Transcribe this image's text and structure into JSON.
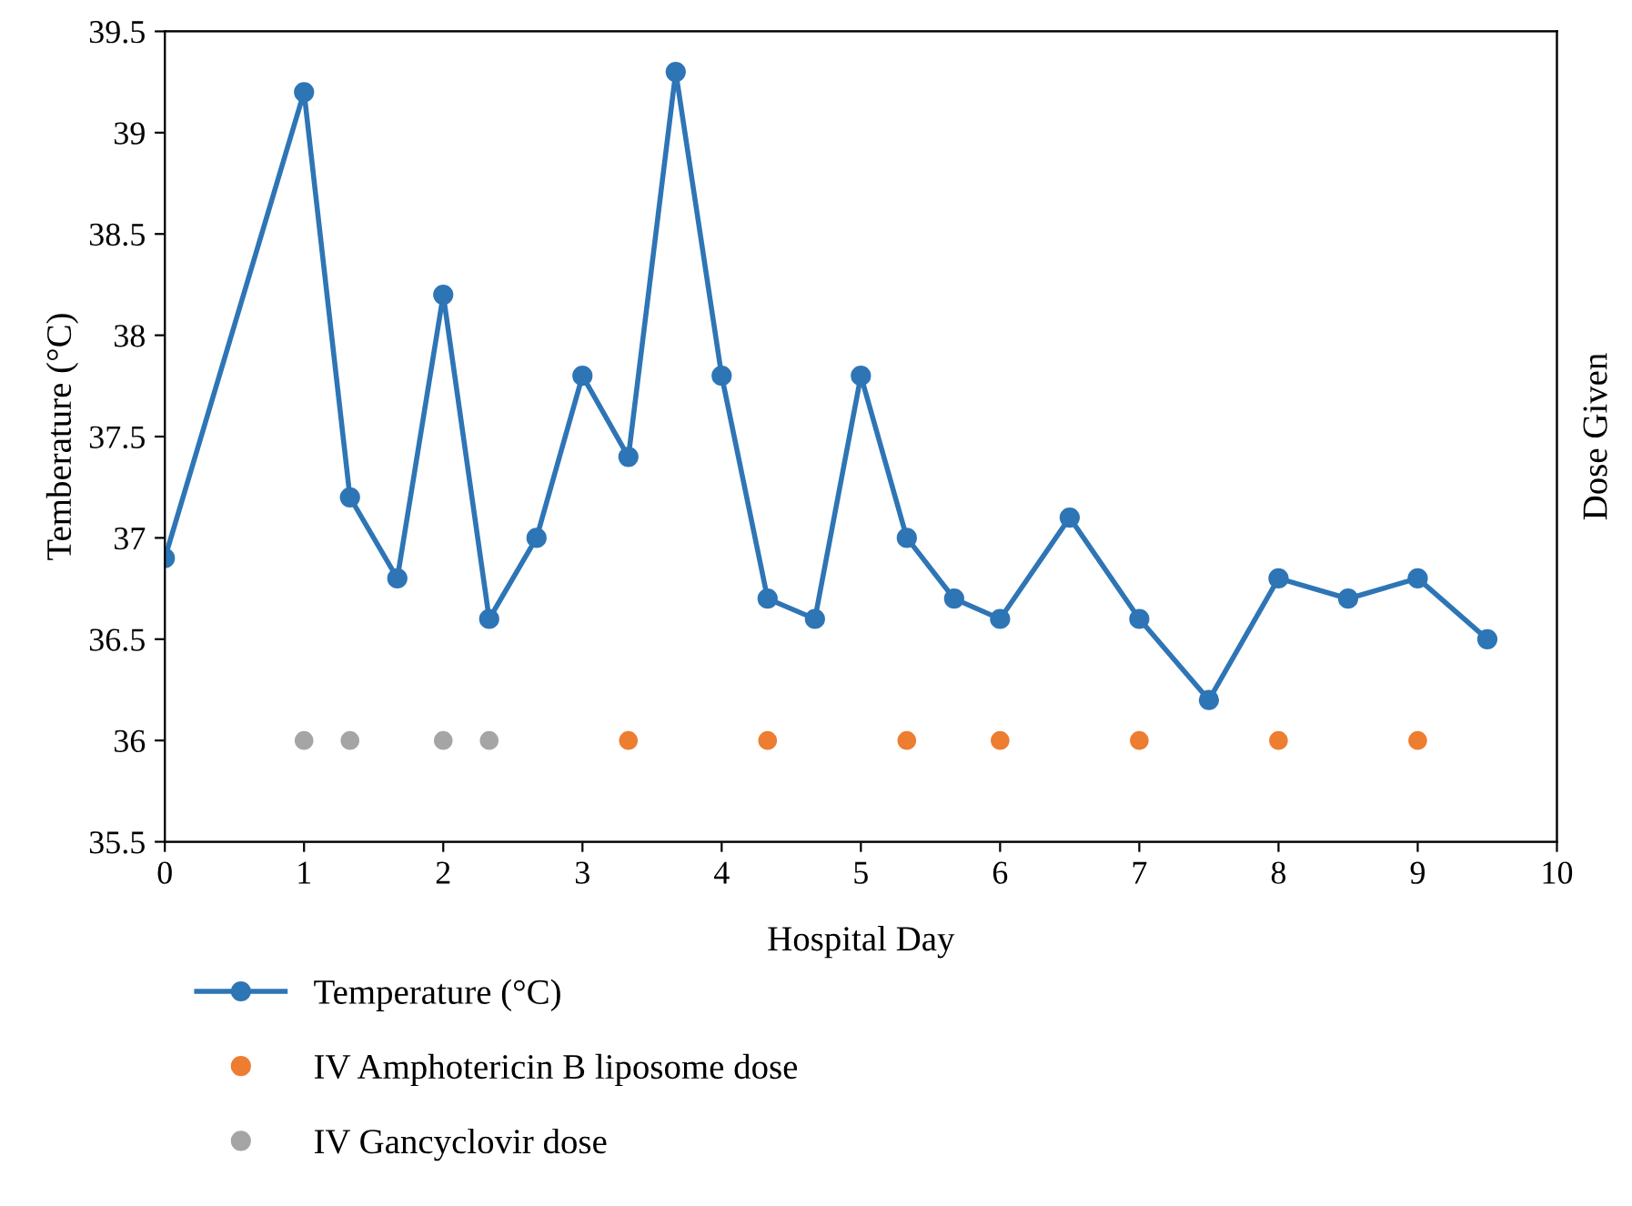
{
  "chart_data": {
    "type": "line",
    "xlabel": "Hospital Day",
    "ylabel": "Temberature (°C)",
    "y2label": "Dose Given",
    "xlim": [
      0,
      10
    ],
    "xticks": [
      0,
      1,
      2,
      3,
      4,
      5,
      6,
      7,
      8,
      9,
      10
    ],
    "ylim": [
      35.5,
      39.5
    ],
    "yticks": [
      35.5,
      36,
      36.5,
      37,
      37.5,
      38,
      38.5,
      39,
      39.5
    ],
    "grid": false,
    "legend": "bottom",
    "series": [
      {
        "name": "Temperature (°C)",
        "color": "#2e75b6",
        "marker": "circle",
        "line_style": "solid",
        "x": [
          0,
          1,
          1.33,
          1.67,
          2,
          2.33,
          2.67,
          3,
          3.33,
          3.67,
          4,
          4.33,
          4.67,
          5,
          5.33,
          5.67,
          6,
          6.5,
          7,
          7.5,
          8,
          8.5,
          9,
          9.5
        ],
        "values": [
          36.9,
          39.2,
          37.2,
          36.8,
          38.2,
          36.6,
          37.0,
          37.8,
          37.4,
          39.3,
          37.8,
          36.7,
          36.6,
          37.8,
          37.0,
          36.7,
          36.6,
          37.1,
          36.6,
          36.2,
          36.8,
          36.7,
          36.8,
          36.5
        ]
      },
      {
        "name": "IV Amphotericin B liposome dose",
        "type": "scatter",
        "color": "#ed7d31",
        "marker": "circle",
        "x": [
          3.33,
          4.33,
          5.33,
          6,
          7,
          8,
          9
        ],
        "values": [
          36,
          36,
          36,
          36,
          36,
          36,
          36
        ]
      },
      {
        "name": "IV Gancyclovir dose",
        "type": "scatter",
        "color": "#a5a5a5",
        "marker": "circle",
        "x": [
          1,
          1.33,
          2,
          2.33
        ],
        "values": [
          36,
          36,
          36,
          36
        ]
      }
    ]
  }
}
